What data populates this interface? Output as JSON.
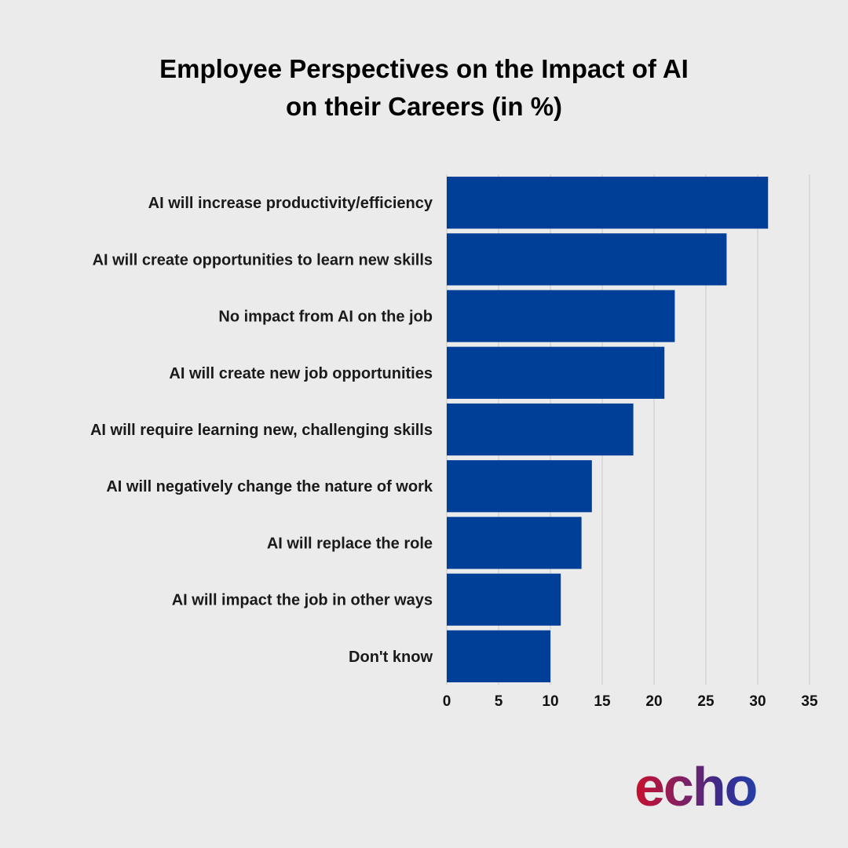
{
  "chart_data": {
    "type": "bar",
    "orientation": "horizontal",
    "title_lines": [
      "Employee Perspectives on the Impact of AI",
      "on their Careers (in %)"
    ],
    "categories": [
      "AI will increase productivity/efficiency",
      "AI will create opportunities to learn new skills",
      "No impact from AI on the job",
      "AI will create new job opportunities",
      "AI will require learning new, challenging skills",
      "AI will negatively change the nature of work",
      "AI will replace the role",
      "AI will impact the job in other ways",
      "Don't know"
    ],
    "values": [
      31,
      27,
      22,
      21,
      18,
      14,
      13,
      11,
      10
    ],
    "xlim": [
      0,
      35
    ],
    "xticks": [
      "0",
      "5",
      "10",
      "15",
      "20",
      "25",
      "30",
      "35"
    ],
    "xlabel": "",
    "ylabel": "",
    "grid": "vertical",
    "legend": "none",
    "bar_color": "#003f98",
    "grid_color": "#c8c8c8"
  },
  "logo": {
    "text": "echo",
    "icon": "echo-logo-infinity-icon",
    "gradient": [
      "#c8102e",
      "#8a1f5c",
      "#3b2a8c",
      "#2540a8"
    ]
  }
}
